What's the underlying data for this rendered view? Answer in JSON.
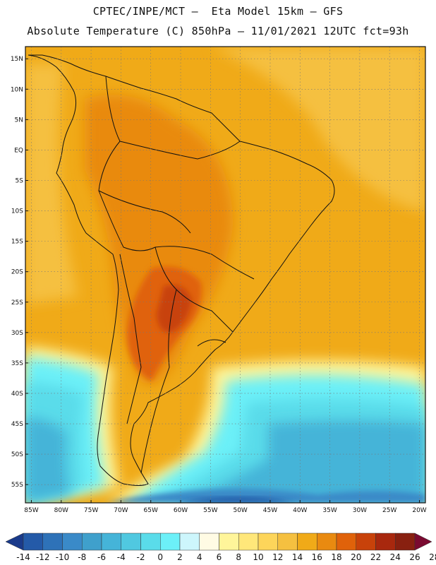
{
  "header": {
    "title_line1": "CPTEC/INPE/MCT –  Eta Model 15km – GFS",
    "title_line2": "Absolute Temperature (C) 850hPa – 11/01/2021 12UTC fct=93h"
  },
  "map": {
    "lon_range": [
      -86,
      -19
    ],
    "lat_range": [
      -58,
      17
    ],
    "lon_ticks": [
      "85W",
      "80W",
      "75W",
      "70W",
      "65W",
      "60W",
      "55W",
      "50W",
      "45W",
      "40W",
      "35W",
      "30W",
      "25W",
      "20W"
    ],
    "lon_tick_values": [
      -85,
      -80,
      -75,
      -70,
      -65,
      -60,
      -55,
      -50,
      -45,
      -40,
      -35,
      -30,
      -25,
      -20
    ],
    "lat_ticks": [
      "15N",
      "10N",
      "5N",
      "EQ",
      "5S",
      "10S",
      "15S",
      "20S",
      "25S",
      "30S",
      "35S",
      "40S",
      "45S",
      "50S",
      "55S"
    ],
    "lat_tick_values": [
      15,
      10,
      5,
      0,
      -5,
      -10,
      -15,
      -20,
      -25,
      -30,
      -35,
      -40,
      -45,
      -50,
      -55
    ],
    "grid": true
  },
  "colorbar": {
    "labels": [
      "-14",
      "-12",
      "-10",
      "-8",
      "-6",
      "-4",
      "-2",
      "0",
      "2",
      "4",
      "6",
      "8",
      "10",
      "12",
      "14",
      "16",
      "18",
      "20",
      "22",
      "24",
      "26",
      "28"
    ],
    "colors": [
      "#1a3a8a",
      "#245aa8",
      "#2e72b8",
      "#3a8ac8",
      "#3fa0cc",
      "#45b4d8",
      "#50c8e0",
      "#5adcea",
      "#6cf0f8",
      "#cdf6fc",
      "#fffbe4",
      "#fff59a",
      "#ffe77a",
      "#fdd55a",
      "#f5c040",
      "#f0aa18",
      "#e98a10",
      "#e0620a",
      "#c8420a",
      "#a8280e",
      "#882010",
      "#7a0a30"
    ]
  }
}
